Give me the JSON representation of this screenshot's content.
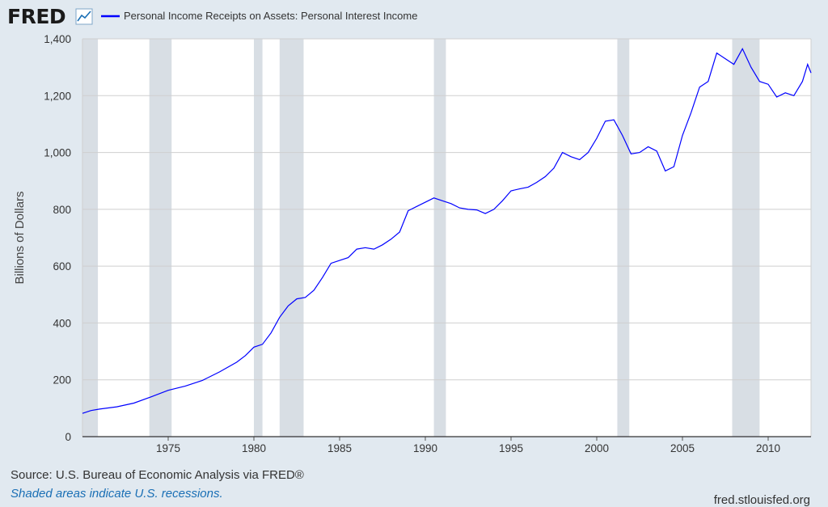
{
  "header": {
    "logo": "FRED",
    "logo_icon": "trend-line-icon",
    "legend_label": "Personal Income Receipts on Assets: Personal Interest Income"
  },
  "colors": {
    "series": "#0000ff",
    "recession": "#d8dee4",
    "grid": "#cfcfcf",
    "plot_bg": "#ffffff",
    "page_bg": "#e1e9f0"
  },
  "footer": {
    "source": "Source: U.S. Bureau of Economic Analysis via FRED®",
    "recession_note": "Shaded areas indicate U.S. recessions.",
    "url": "fred.stlouisfed.org"
  },
  "chart_data": {
    "type": "line",
    "title": "Personal Income Receipts on Assets: Personal Interest Income",
    "ylabel": "Billions of Dollars",
    "xlabel": "",
    "xlim": [
      1970.0,
      2012.5
    ],
    "ylim": [
      0,
      1400
    ],
    "x_ticks": [
      1975,
      1980,
      1985,
      1990,
      1995,
      2000,
      2005,
      2010
    ],
    "y_ticks": [
      0,
      200,
      400,
      600,
      800,
      1000,
      1200,
      1400
    ],
    "y_tick_labels": [
      "0",
      "200",
      "400",
      "600",
      "800",
      "1,000",
      "1,200",
      "1,400"
    ],
    "grid": true,
    "recessions": [
      [
        1970.0,
        1970.9
      ],
      [
        1973.9,
        1975.2
      ],
      [
        1980.0,
        1980.5
      ],
      [
        1981.5,
        1982.9
      ],
      [
        1990.5,
        1991.2
      ],
      [
        2001.2,
        2001.9
      ],
      [
        2007.9,
        2009.5
      ]
    ],
    "series": [
      {
        "name": "Personal Income Receipts on Assets: Personal Interest Income",
        "x": [
          1970.0,
          1970.5,
          1971.0,
          1972.0,
          1973.0,
          1974.0,
          1975.0,
          1976.0,
          1977.0,
          1978.0,
          1979.0,
          1979.5,
          1980.0,
          1980.5,
          1981.0,
          1981.5,
          1982.0,
          1982.5,
          1983.0,
          1983.5,
          1984.0,
          1984.5,
          1985.0,
          1985.5,
          1986.0,
          1986.5,
          1987.0,
          1987.5,
          1988.0,
          1988.5,
          1989.0,
          1989.5,
          1990.0,
          1990.5,
          1991.0,
          1991.5,
          1992.0,
          1992.5,
          1993.0,
          1993.5,
          1994.0,
          1994.5,
          1995.0,
          1995.5,
          1996.0,
          1996.5,
          1997.0,
          1997.5,
          1998.0,
          1998.5,
          1999.0,
          1999.5,
          2000.0,
          2000.5,
          2001.0,
          2001.5,
          2002.0,
          2002.5,
          2003.0,
          2003.5,
          2004.0,
          2004.5,
          2005.0,
          2005.5,
          2006.0,
          2006.5,
          2007.0,
          2007.5,
          2008.0,
          2008.5,
          2009.0,
          2009.5,
          2010.0,
          2010.5,
          2011.0,
          2011.5,
          2012.0,
          2012.3,
          2012.5
        ],
        "values": [
          82,
          92,
          97,
          105,
          118,
          140,
          163,
          178,
          198,
          228,
          262,
          285,
          315,
          325,
          365,
          420,
          460,
          485,
          490,
          515,
          560,
          610,
          620,
          630,
          660,
          665,
          660,
          675,
          695,
          720,
          795,
          810,
          825,
          840,
          830,
          820,
          805,
          800,
          798,
          785,
          800,
          830,
          865,
          872,
          878,
          895,
          915,
          945,
          1000,
          985,
          975,
          1000,
          1050,
          1110,
          1115,
          1060,
          995,
          1000,
          1020,
          1005,
          935,
          950,
          1060,
          1140,
          1230,
          1250,
          1350,
          1330,
          1310,
          1365,
          1300,
          1250,
          1240,
          1195,
          1210,
          1200,
          1250,
          1310,
          1280
        ]
      }
    ]
  }
}
